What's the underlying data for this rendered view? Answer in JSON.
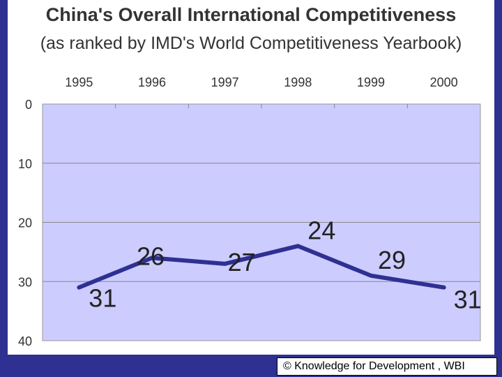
{
  "chart_data": {
    "type": "line",
    "title": "China's Overall International Competitiveness",
    "subtitle": "(as ranked by IMD's World Competitiveness Yearbook)",
    "categories": [
      "1995",
      "1996",
      "1997",
      "1998",
      "1999",
      "2000"
    ],
    "series": [
      {
        "values": [
          31,
          26,
          27,
          24,
          29,
          31
        ]
      }
    ],
    "data_labels": [
      "31",
      "26",
      "27",
      "24",
      "29",
      "31"
    ],
    "yticks": [
      "0",
      "10",
      "20",
      "30",
      "40"
    ],
    "ylim": [
      0,
      40
    ],
    "y_inverted": true,
    "x_axis_position": "top",
    "grid": true,
    "legend": "none",
    "colors": {
      "line": "#2e3092",
      "plot_bg": "#ccccff",
      "grid": "#888888"
    }
  },
  "footer": {
    "credit": "© Knowledge for Development , WBI"
  }
}
